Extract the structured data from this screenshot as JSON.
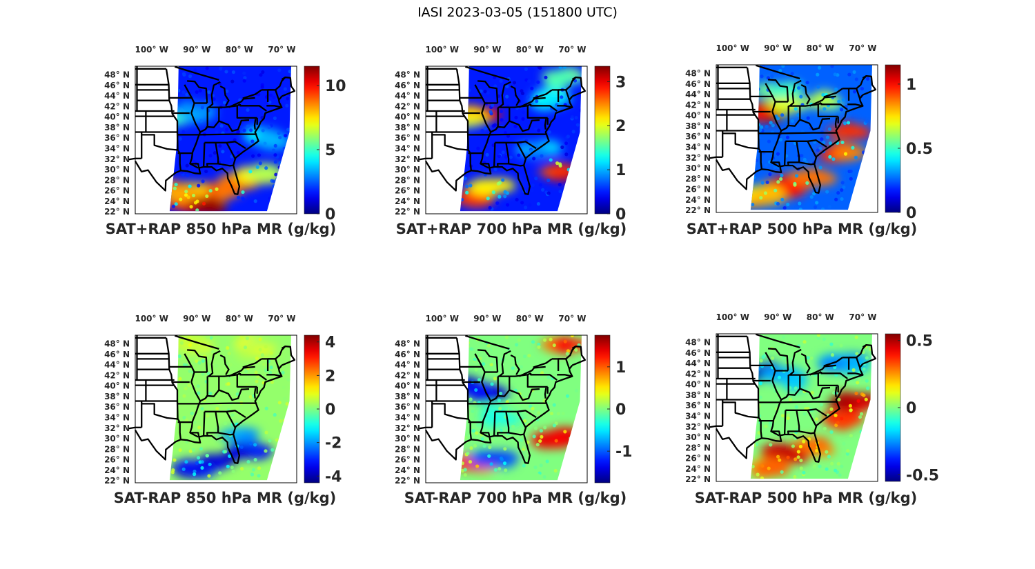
{
  "figure": {
    "title": "IASI 2023-03-05 (151800 UTC)"
  },
  "chart_data": [
    {
      "type": "heatmap",
      "title": "SAT+RAP 850 hPa MR (g/kg)",
      "xlabel": "",
      "ylabel": "",
      "x_ticks": [
        "100° W",
        "90° W",
        "80° W",
        "70° W"
      ],
      "y_ticks": [
        "48° N",
        "46° N",
        "44° N",
        "42° N",
        "40° N",
        "38° N",
        "36° N",
        "34° N",
        "32° N",
        "30° N",
        "28° N",
        "26° N",
        "24° N",
        "22° N"
      ],
      "colormap": "jet",
      "colorbar": {
        "clim": [
          0,
          11.5
        ],
        "ticks": [
          0,
          5,
          10
        ],
        "tick_labels": [
          "0",
          "5",
          "10"
        ]
      },
      "background": 0.15,
      "features": [
        {
          "lon": -96,
          "lat": 40,
          "value": 0.38
        },
        {
          "lon": -90,
          "lat": 41,
          "value": 0.32
        },
        {
          "lon": -74,
          "lat": 36,
          "value": 0.35
        },
        {
          "lon": -92,
          "lat": 24,
          "value": 0.85
        },
        {
          "lon": -85,
          "lat": 25.5,
          "value": 0.78
        },
        {
          "lon": -80,
          "lat": 27,
          "value": 0.75
        },
        {
          "lon": -76,
          "lat": 29,
          "value": 0.6
        },
        {
          "lon": -88,
          "lat": 23,
          "value": 0.95
        },
        {
          "lon": -94,
          "lat": 26,
          "value": 0.7
        }
      ]
    },
    {
      "type": "heatmap",
      "title": "SAT+RAP 700 hPa MR (g/kg)",
      "xlabel": "",
      "ylabel": "",
      "x_ticks": [
        "100° W",
        "90° W",
        "80° W",
        "70° W"
      ],
      "y_ticks": [
        "48° N",
        "46° N",
        "44° N",
        "42° N",
        "40° N",
        "38° N",
        "36° N",
        "34° N",
        "32° N",
        "30° N",
        "28° N",
        "26° N",
        "24° N",
        "22° N"
      ],
      "colormap": "jet",
      "colorbar": {
        "clim": [
          0,
          3.35
        ],
        "ticks": [
          0,
          1,
          2,
          3
        ],
        "tick_labels": [
          "0",
          "1",
          "2",
          "3"
        ]
      },
      "background": 0.15,
      "features": [
        {
          "lon": -93,
          "lat": 40.5,
          "value": 0.85
        },
        {
          "lon": -95.5,
          "lat": 39.5,
          "value": 0.6
        },
        {
          "lon": -72,
          "lat": 47.5,
          "value": 0.45
        },
        {
          "lon": -75,
          "lat": 43.5,
          "value": 0.38
        },
        {
          "lon": -92,
          "lat": 25,
          "value": 0.85
        },
        {
          "lon": -88,
          "lat": 26.5,
          "value": 0.65
        },
        {
          "lon": -74,
          "lat": 30,
          "value": 0.85
        },
        {
          "lon": -78,
          "lat": 34,
          "value": 0.3
        }
      ]
    },
    {
      "type": "heatmap",
      "title": "SAT+RAP 500 hPa MR (g/kg)",
      "xlabel": "",
      "ylabel": "",
      "x_ticks": [
        "100° W",
        "90° W",
        "80° W",
        "70° W"
      ],
      "y_ticks": [
        "48° N",
        "46° N",
        "44° N",
        "42° N",
        "40° N",
        "38° N",
        "36° N",
        "34° N",
        "32° N",
        "30° N",
        "28° N",
        "26° N",
        "24° N",
        "22° N"
      ],
      "colormap": "jet",
      "colorbar": {
        "clim": [
          0,
          1.15
        ],
        "ticks": [
          0,
          0.5,
          1
        ],
        "tick_labels": [
          "0",
          "0.5",
          "1"
        ]
      },
      "background": 0.22,
      "features": [
        {
          "lon": -95,
          "lat": 40.5,
          "value": 0.9
        },
        {
          "lon": -88,
          "lat": 42,
          "value": 0.55
        },
        {
          "lon": -80,
          "lat": 42.5,
          "value": 0.5
        },
        {
          "lon": -89,
          "lat": 45,
          "value": 0.45
        },
        {
          "lon": -72,
          "lat": 37,
          "value": 0.85
        },
        {
          "lon": -75,
          "lat": 33,
          "value": 0.8
        },
        {
          "lon": -88,
          "lat": 26.5,
          "value": 0.85
        },
        {
          "lon": -82,
          "lat": 28,
          "value": 0.75
        },
        {
          "lon": -93,
          "lat": 24.5,
          "value": 0.7
        }
      ]
    },
    {
      "type": "heatmap",
      "title": "SAT-RAP 850 hPa MR (g/kg)",
      "xlabel": "",
      "ylabel": "",
      "x_ticks": [
        "100° W",
        "90° W",
        "80° W",
        "70° W"
      ],
      "y_ticks": [
        "48° N",
        "46° N",
        "44° N",
        "42° N",
        "40° N",
        "38° N",
        "36° N",
        "34° N",
        "32° N",
        "30° N",
        "28° N",
        "26° N",
        "24° N",
        "22° N"
      ],
      "colormap": "jet",
      "colorbar": {
        "clim": [
          -4.4,
          4.4
        ],
        "ticks": [
          -4,
          -2,
          0,
          2,
          4
        ],
        "tick_labels": [
          "-4",
          "-2",
          "0",
          "2",
          "4"
        ]
      },
      "background": 0.52,
      "features": [
        {
          "lon": -85,
          "lat": 25.5,
          "value": 0.08
        },
        {
          "lon": -91,
          "lat": 24.5,
          "value": 0.1
        },
        {
          "lon": -78,
          "lat": 28,
          "value": 0.12
        },
        {
          "lon": -80,
          "lat": 31,
          "value": 0.3
        },
        {
          "lon": -92,
          "lat": 48,
          "value": 0.6
        },
        {
          "lon": -76,
          "lat": 47,
          "value": 0.58
        }
      ]
    },
    {
      "type": "heatmap",
      "title": "SAT-RAP 700 hPa MR (g/kg)",
      "xlabel": "",
      "ylabel": "",
      "x_ticks": [
        "100° W",
        "90° W",
        "80° W",
        "70° W"
      ],
      "y_ticks": [
        "48° N",
        "46° N",
        "44° N",
        "42° N",
        "40° N",
        "38° N",
        "36° N",
        "34° N",
        "32° N",
        "30° N",
        "28° N",
        "26° N",
        "24° N",
        "22° N"
      ],
      "colormap": "jet",
      "colorbar": {
        "clim": [
          -1.75,
          1.75
        ],
        "ticks": [
          -1,
          0,
          1
        ],
        "tick_labels": [
          "-1",
          "0",
          "1"
        ]
      },
      "background": 0.5,
      "features": [
        {
          "lon": -95,
          "lat": 39.5,
          "value": 0.05
        },
        {
          "lon": -90,
          "lat": 38.5,
          "value": 0.1
        },
        {
          "lon": -88,
          "lat": 34,
          "value": 0.38
        },
        {
          "lon": -92,
          "lat": 25.5,
          "value": 0.8
        },
        {
          "lon": -88,
          "lat": 26,
          "value": 0.2
        },
        {
          "lon": -74,
          "lat": 30,
          "value": 0.9
        },
        {
          "lon": -72,
          "lat": 48,
          "value": 0.8
        }
      ]
    },
    {
      "type": "heatmap",
      "title": "SAT-RAP 500 hPa MR (g/kg)",
      "xlabel": "",
      "ylabel": "",
      "x_ticks": [
        "100° W",
        "90° W",
        "80° W",
        "70° W"
      ],
      "y_ticks": [
        "48° N",
        "46° N",
        "44° N",
        "42° N",
        "40° N",
        "38° N",
        "36° N",
        "34° N",
        "32° N",
        "30° N",
        "28° N",
        "26° N",
        "24° N",
        "22° N"
      ],
      "colormap": "jet",
      "colorbar": {
        "clim": [
          -0.55,
          0.55
        ],
        "ticks": [
          -0.5,
          0,
          0.5
        ],
        "tick_labels": [
          "-0.5",
          "0",
          "0.5"
        ]
      },
      "background": 0.5,
      "features": [
        {
          "lon": -94,
          "lat": 42,
          "value": 0.05
        },
        {
          "lon": -88,
          "lat": 41,
          "value": 0.3
        },
        {
          "lon": -75,
          "lat": 44,
          "value": 0.3
        },
        {
          "lon": -72,
          "lat": 37,
          "value": 0.92
        },
        {
          "lon": -75,
          "lat": 33,
          "value": 0.85
        },
        {
          "lon": -88,
          "lat": 26.5,
          "value": 0.88
        },
        {
          "lon": -82,
          "lat": 28,
          "value": 0.8
        },
        {
          "lon": -93,
          "lat": 24,
          "value": 0.75
        }
      ]
    }
  ]
}
